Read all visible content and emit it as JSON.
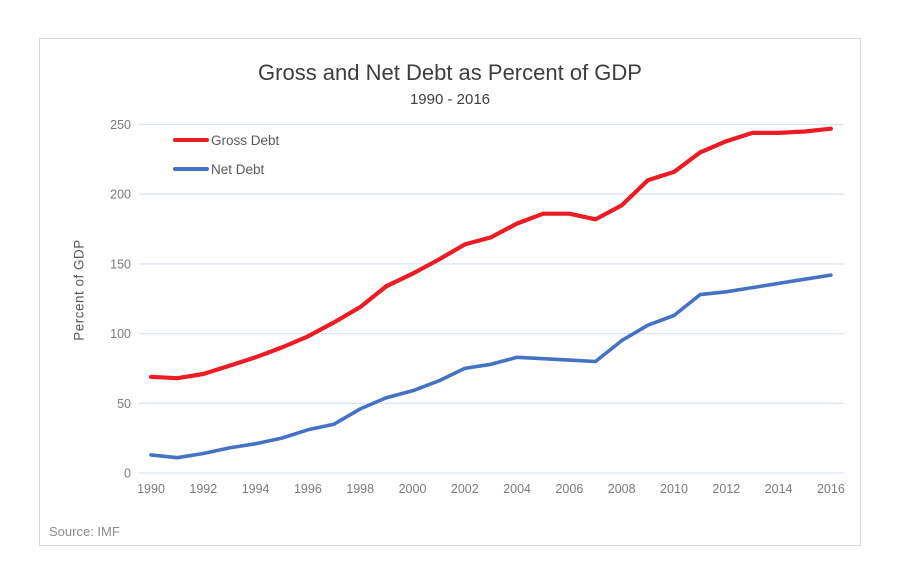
{
  "chart_data": {
    "type": "line",
    "title": "Gross and Net Debt as Percent of GDP",
    "subtitle": "1990 - 2016",
    "xlabel": "",
    "ylabel": "Percent of GDP",
    "source": "Source: IMF",
    "x": [
      1990,
      1991,
      1992,
      1993,
      1994,
      1995,
      1996,
      1997,
      1998,
      1999,
      2000,
      2001,
      2002,
      2003,
      2004,
      2005,
      2006,
      2007,
      2008,
      2009,
      2010,
      2011,
      2012,
      2013,
      2014,
      2015,
      2016
    ],
    "x_tick_labels": [
      "1990",
      "1992",
      "1994",
      "1996",
      "1998",
      "2000",
      "2002",
      "2004",
      "2006",
      "2008",
      "2010",
      "2012",
      "2014",
      "2016"
    ],
    "y_ticks": [
      0,
      50,
      100,
      150,
      200,
      250
    ],
    "ylim": [
      0,
      250
    ],
    "grid": true,
    "legend_position": "top-left-inside",
    "colors": {
      "gross_debt": "#ec1b24",
      "net_debt": "#4472c4",
      "gridline": "#dce6f2",
      "axis_text": "#7a7a7a",
      "title_text": "#3d3d3d",
      "legend_text": "#595959",
      "source_text": "#8c8c8c",
      "border": "#d9d9d9"
    },
    "series": [
      {
        "name": "Gross Debt",
        "color": "#ec1b24",
        "values": [
          69,
          68,
          71,
          77,
          83,
          90,
          98,
          108,
          119,
          134,
          143,
          153,
          164,
          169,
          179,
          186,
          186,
          182,
          192,
          210,
          216,
          230,
          238,
          244,
          244,
          245,
          247
        ]
      },
      {
        "name": "Net Debt",
        "color": "#4472c4",
        "values": [
          13,
          11,
          14,
          18,
          21,
          25,
          31,
          35,
          46,
          54,
          59,
          66,
          75,
          78,
          83,
          82,
          81,
          80,
          95,
          106,
          113,
          128,
          130,
          133,
          136,
          139,
          142
        ]
      }
    ]
  }
}
